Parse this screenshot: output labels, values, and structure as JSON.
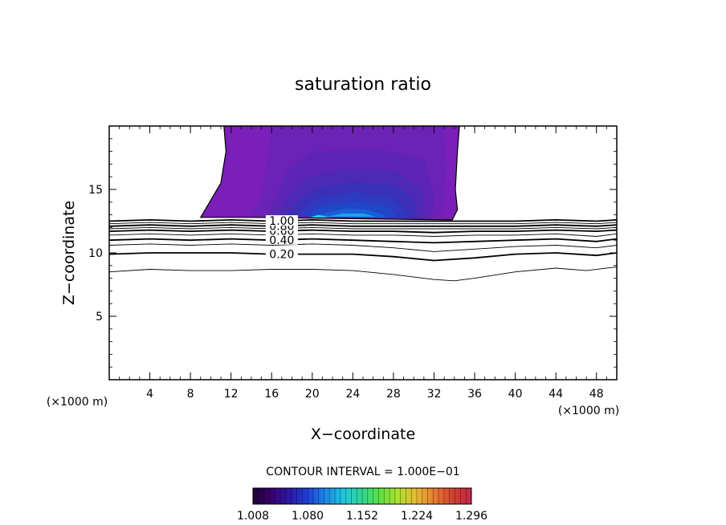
{
  "chart_data": {
    "type": "contour",
    "title": "saturation ratio",
    "xlabel": "X−coordinate",
    "ylabel": "Z−coordinate",
    "x_unit_left": "(×1000 m)",
    "x_unit_right": "(×1000 m)",
    "xlim": [
      0,
      50
    ],
    "ylim": [
      0,
      20
    ],
    "x_ticks": [
      4,
      8,
      12,
      16,
      20,
      24,
      28,
      32,
      36,
      40,
      44,
      48
    ],
    "x_tick_labels": [
      "4",
      "8",
      "12",
      "16",
      "20",
      "24",
      "28",
      "32",
      "36",
      "40",
      "44",
      "48"
    ],
    "y_ticks": [
      5,
      10,
      15
    ],
    "y_tick_labels": [
      "5",
      "10",
      "15"
    ],
    "contour_levels": [
      {
        "level": 0.1,
        "label": "",
        "points": [
          [
            0,
            8.5
          ],
          [
            4,
            8.7
          ],
          [
            8,
            8.6
          ],
          [
            12,
            8.6
          ],
          [
            16,
            8.7
          ],
          [
            20,
            8.7
          ],
          [
            24,
            8.6
          ],
          [
            28,
            8.3
          ],
          [
            32,
            7.9
          ],
          [
            34,
            7.8
          ],
          [
            36,
            8.0
          ],
          [
            40,
            8.5
          ],
          [
            44,
            8.8
          ],
          [
            47,
            8.6
          ],
          [
            50,
            8.9
          ]
        ]
      },
      {
        "level": 0.2,
        "label": "0.20",
        "points": [
          [
            0,
            9.9
          ],
          [
            4,
            10.0
          ],
          [
            8,
            10.0
          ],
          [
            12,
            10.0
          ],
          [
            16,
            9.9
          ],
          [
            20,
            9.9
          ],
          [
            24,
            9.9
          ],
          [
            28,
            9.7
          ],
          [
            32,
            9.4
          ],
          [
            36,
            9.6
          ],
          [
            40,
            9.9
          ],
          [
            44,
            10.0
          ],
          [
            48,
            9.8
          ],
          [
            50,
            10.0
          ]
        ]
      },
      {
        "level": 0.3,
        "label": "",
        "points": [
          [
            0,
            10.6
          ],
          [
            4,
            10.7
          ],
          [
            8,
            10.6
          ],
          [
            12,
            10.7
          ],
          [
            16,
            10.6
          ],
          [
            20,
            10.7
          ],
          [
            24,
            10.6
          ],
          [
            28,
            10.4
          ],
          [
            32,
            10.1
          ],
          [
            36,
            10.3
          ],
          [
            40,
            10.5
          ],
          [
            44,
            10.6
          ],
          [
            48,
            10.4
          ],
          [
            50,
            10.6
          ]
        ]
      },
      {
        "level": 0.4,
        "label": "0.40",
        "points": [
          [
            0,
            11.0
          ],
          [
            4,
            11.1
          ],
          [
            8,
            11.0
          ],
          [
            12,
            11.1
          ],
          [
            16,
            11.0
          ],
          [
            20,
            11.1
          ],
          [
            24,
            11.0
          ],
          [
            28,
            10.9
          ],
          [
            32,
            10.8
          ],
          [
            36,
            10.9
          ],
          [
            40,
            11.0
          ],
          [
            44,
            11.1
          ],
          [
            48,
            10.9
          ],
          [
            50,
            11.1
          ]
        ]
      },
      {
        "level": 0.5,
        "label": "",
        "points": [
          [
            0,
            11.4
          ],
          [
            4,
            11.5
          ],
          [
            8,
            11.4
          ],
          [
            12,
            11.5
          ],
          [
            16,
            11.4
          ],
          [
            20,
            11.5
          ],
          [
            24,
            11.4
          ],
          [
            28,
            11.4
          ],
          [
            32,
            11.3
          ],
          [
            36,
            11.4
          ],
          [
            40,
            11.4
          ],
          [
            44,
            11.5
          ],
          [
            48,
            11.3
          ],
          [
            50,
            11.5
          ]
        ]
      },
      {
        "level": 0.6,
        "label": "0.60",
        "points": [
          [
            0,
            11.7
          ],
          [
            4,
            11.8
          ],
          [
            8,
            11.7
          ],
          [
            12,
            11.8
          ],
          [
            16,
            11.7
          ],
          [
            20,
            11.8
          ],
          [
            24,
            11.7
          ],
          [
            28,
            11.7
          ],
          [
            32,
            11.6
          ],
          [
            36,
            11.7
          ],
          [
            40,
            11.7
          ],
          [
            44,
            11.8
          ],
          [
            48,
            11.7
          ],
          [
            50,
            11.8
          ]
        ]
      },
      {
        "level": 0.7,
        "label": "",
        "points": [
          [
            0,
            11.9
          ],
          [
            4,
            12.0
          ],
          [
            8,
            11.9
          ],
          [
            12,
            12.0
          ],
          [
            16,
            11.9
          ],
          [
            20,
            12.0
          ],
          [
            24,
            11.9
          ],
          [
            28,
            11.9
          ],
          [
            32,
            11.9
          ],
          [
            36,
            11.9
          ],
          [
            40,
            11.9
          ],
          [
            44,
            12.0
          ],
          [
            48,
            11.9
          ],
          [
            50,
            12.0
          ]
        ]
      },
      {
        "level": 0.8,
        "label": "0.80",
        "points": [
          [
            0,
            12.1
          ],
          [
            4,
            12.2
          ],
          [
            8,
            12.1
          ],
          [
            12,
            12.2
          ],
          [
            16,
            12.1
          ],
          [
            20,
            12.2
          ],
          [
            24,
            12.1
          ],
          [
            28,
            12.1
          ],
          [
            32,
            12.1
          ],
          [
            36,
            12.1
          ],
          [
            40,
            12.1
          ],
          [
            44,
            12.2
          ],
          [
            48,
            12.1
          ],
          [
            50,
            12.2
          ]
        ]
      },
      {
        "level": 0.9,
        "label": "",
        "points": [
          [
            0,
            12.3
          ],
          [
            4,
            12.4
          ],
          [
            8,
            12.3
          ],
          [
            12,
            12.4
          ],
          [
            16,
            12.3
          ],
          [
            20,
            12.4
          ],
          [
            24,
            12.3
          ],
          [
            28,
            12.3
          ],
          [
            32,
            12.3
          ],
          [
            36,
            12.3
          ],
          [
            40,
            12.3
          ],
          [
            44,
            12.4
          ],
          [
            48,
            12.3
          ],
          [
            50,
            12.4
          ]
        ]
      },
      {
        "level": 1.0,
        "label": "1.00",
        "points": [
          [
            0,
            12.5
          ],
          [
            4,
            12.6
          ],
          [
            8,
            12.5
          ],
          [
            12,
            12.6
          ],
          [
            16,
            12.5
          ],
          [
            20,
            12.6
          ],
          [
            24,
            12.5
          ],
          [
            28,
            12.5
          ],
          [
            32,
            12.5
          ],
          [
            36,
            12.5
          ],
          [
            40,
            12.5
          ],
          [
            44,
            12.6
          ],
          [
            48,
            12.5
          ],
          [
            50,
            12.6
          ]
        ]
      }
    ],
    "shaded_region": {
      "description_value": "saturation ratio above 1.0",
      "outline": [
        [
          9,
          12.8
        ],
        [
          11,
          15.5
        ],
        [
          11.5,
          18.0
        ],
        [
          11.3,
          20.0
        ],
        [
          34.5,
          20.0
        ],
        [
          34.3,
          18.0
        ],
        [
          34.1,
          15.0
        ],
        [
          34.3,
          13.4
        ],
        [
          33.8,
          12.6
        ],
        [
          14,
          12.8
        ]
      ],
      "levels": [
        {
          "value": 1.02,
          "outline": [
            [
              14,
              12.9
            ],
            [
              15,
              14.5
            ],
            [
              15.5,
              17
            ],
            [
              16,
              20
            ],
            [
              33,
              20
            ],
            [
              33.2,
              17
            ],
            [
              33,
              14
            ],
            [
              32.5,
              12.7
            ]
          ]
        },
        {
          "value": 1.05,
          "outline": [
            [
              15.5,
              12.9
            ],
            [
              16.5,
              14.5
            ],
            [
              17.5,
              16.5
            ],
            [
              20,
              18.0
            ],
            [
              26,
              18.2
            ],
            [
              31,
              17.5
            ],
            [
              32,
              14.5
            ],
            [
              31.8,
              12.7
            ]
          ]
        },
        {
          "value": 1.08,
          "outline": [
            [
              16.5,
              12.9
            ],
            [
              17.5,
              14.2
            ],
            [
              19,
              15.8
            ],
            [
              23,
              16.6
            ],
            [
              28,
              16.5
            ],
            [
              30.8,
              15.0
            ],
            [
              31,
              12.7
            ]
          ]
        },
        {
          "value": 1.11,
          "outline": [
            [
              17.5,
              12.9
            ],
            [
              18.5,
              14.0
            ],
            [
              20.5,
              15.1
            ],
            [
              24,
              15.6
            ],
            [
              28,
              15.4
            ],
            [
              30,
              14.2
            ],
            [
              30.2,
              12.7
            ]
          ]
        },
        {
          "value": 1.14,
          "outline": [
            [
              18.5,
              12.9
            ],
            [
              19.5,
              13.8
            ],
            [
              21,
              14.4
            ],
            [
              24,
              14.8
            ],
            [
              27.5,
              14.5
            ],
            [
              29,
              13.6
            ],
            [
              29.3,
              12.8
            ]
          ]
        },
        {
          "value": 1.17,
          "outline": [
            [
              19.5,
              12.9
            ],
            [
              20.5,
              13.5
            ],
            [
              22,
              13.9
            ],
            [
              24.5,
              14.0
            ],
            [
              27,
              13.8
            ],
            [
              28,
              13.2
            ],
            [
              28.3,
              12.8
            ]
          ]
        },
        {
          "value": 1.2,
          "outline": [
            [
              20.5,
              12.9
            ],
            [
              21.5,
              13.2
            ],
            [
              23.5,
              13.5
            ],
            [
              25.5,
              13.4
            ],
            [
              27,
              13.0
            ],
            [
              27.2,
              12.8
            ]
          ]
        },
        {
          "value": 1.25,
          "outline": [
            [
              21.5,
              12.85
            ],
            [
              23,
              13.1
            ],
            [
              25,
              13.1
            ],
            [
              26.3,
              12.85
            ]
          ]
        },
        {
          "value": 1.3,
          "outline": [
            [
              19.8,
              12.8
            ],
            [
              20.6,
              13.0
            ],
            [
              21.8,
              12.8
            ]
          ]
        }
      ]
    },
    "contour_interval_text": "CONTOUR INTERVAL = 1.000E−01",
    "colorbar": {
      "min": 1.008,
      "max": 1.296,
      "tick_labels": [
        "1.008",
        "1.080",
        "1.152",
        "1.224",
        "1.296"
      ],
      "tick_values": [
        1.008,
        1.08,
        1.152,
        1.224,
        1.296
      ],
      "colors": [
        "#1a0033",
        "#3b0070",
        "#2a1aa8",
        "#1f3fd6",
        "#1e88e8",
        "#20c8e0",
        "#30d890",
        "#60e040",
        "#b0e030",
        "#e8b830",
        "#e87a30",
        "#d04030",
        "#c02848"
      ]
    },
    "colors": {
      "shade_base": "#7a1fb8",
      "contour_line": "#000000",
      "frame": "#000000"
    }
  }
}
